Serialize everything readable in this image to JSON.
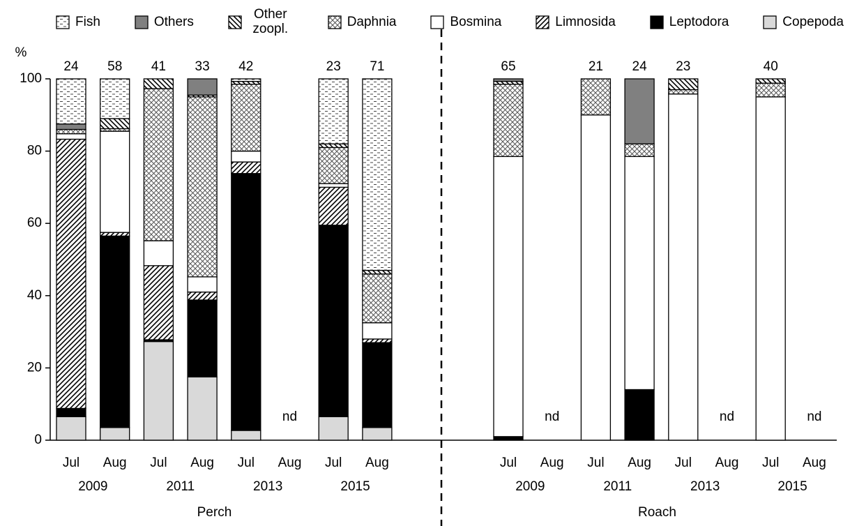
{
  "chart_data": {
    "type": "bar",
    "stacked": true,
    "y_label": "%",
    "ylim": [
      0,
      100
    ],
    "yticks": [
      0,
      20,
      40,
      60,
      80,
      100
    ],
    "panels": [
      {
        "name": "Perch",
        "categories": [
          "Jul",
          "Aug",
          "Jul",
          "Aug",
          "Jul",
          "Aug",
          "Jul",
          "Aug"
        ],
        "years": [
          "2009",
          "2011",
          "2013",
          "2015"
        ],
        "n": [
          24,
          58,
          41,
          33,
          42,
          null,
          23,
          71
        ],
        "nd": [
          null,
          null,
          null,
          null,
          null,
          "nd",
          null,
          null
        ]
      },
      {
        "name": "Roach",
        "categories": [
          "Jul",
          "Aug",
          "Jul",
          "Aug",
          "Jul",
          "Aug",
          "Jul",
          "Aug"
        ],
        "years": [
          "2009",
          "2011",
          "2013",
          "2015"
        ],
        "n": [
          65,
          null,
          21,
          24,
          23,
          null,
          40,
          null
        ],
        "nd": [
          null,
          "nd",
          null,
          null,
          null,
          "nd",
          null,
          "nd"
        ]
      }
    ],
    "series": [
      {
        "name": "Fish",
        "color": "#ffffff",
        "pattern": "dash",
        "values": [
          12.5,
          11,
          0,
          0,
          0.7,
          null,
          18,
          53,
          0,
          null,
          0,
          0,
          0,
          null,
          0,
          null
        ]
      },
      {
        "name": "Others",
        "color": "#808080",
        "pattern": "solid",
        "values": [
          1.5,
          0,
          0,
          4.5,
          0,
          null,
          0,
          0,
          0.7,
          null,
          0,
          18,
          0,
          null,
          0,
          null
        ]
      },
      {
        "name": "Other zoopl.",
        "color": "#ffffff",
        "pattern": "hatch-back",
        "values": [
          0,
          2.8,
          2.7,
          0.5,
          0.8,
          null,
          1,
          1,
          0.8,
          null,
          0,
          0,
          3,
          null,
          1.2,
          null
        ]
      },
      {
        "name": "Daphnia",
        "color": "#ffffff",
        "pattern": "cross",
        "values": [
          1.2,
          0.7,
          42.1,
          49.8,
          18.5,
          null,
          10,
          13.5,
          20,
          null,
          10,
          3.5,
          1.2,
          null,
          3.8,
          null
        ]
      },
      {
        "name": "Bosmina",
        "color": "#ffffff",
        "pattern": "solid",
        "values": [
          1.5,
          28,
          6.9,
          4.2,
          3,
          null,
          1,
          4.5,
          77.5,
          null,
          90,
          64.5,
          95.8,
          null,
          95,
          null
        ]
      },
      {
        "name": "Limnosida",
        "color": "#ffffff",
        "pattern": "hatch",
        "values": [
          74.5,
          1,
          20.5,
          2.2,
          3.2,
          null,
          10.5,
          1,
          0,
          null,
          0,
          0,
          0,
          null,
          0,
          null
        ]
      },
      {
        "name": "Leptodora",
        "color": "#000000",
        "pattern": "solid",
        "values": [
          2.3,
          53,
          0.5,
          21.3,
          71.1,
          null,
          53,
          23.5,
          1,
          null,
          0,
          14,
          0,
          null,
          0,
          null
        ]
      },
      {
        "name": "Copepoda",
        "color": "#d9d9d9",
        "pattern": "solid",
        "values": [
          6.5,
          3.5,
          27.3,
          17.5,
          2.7,
          null,
          6.5,
          3.5,
          0,
          null,
          0,
          0,
          0,
          null,
          0,
          null
        ]
      }
    ]
  }
}
